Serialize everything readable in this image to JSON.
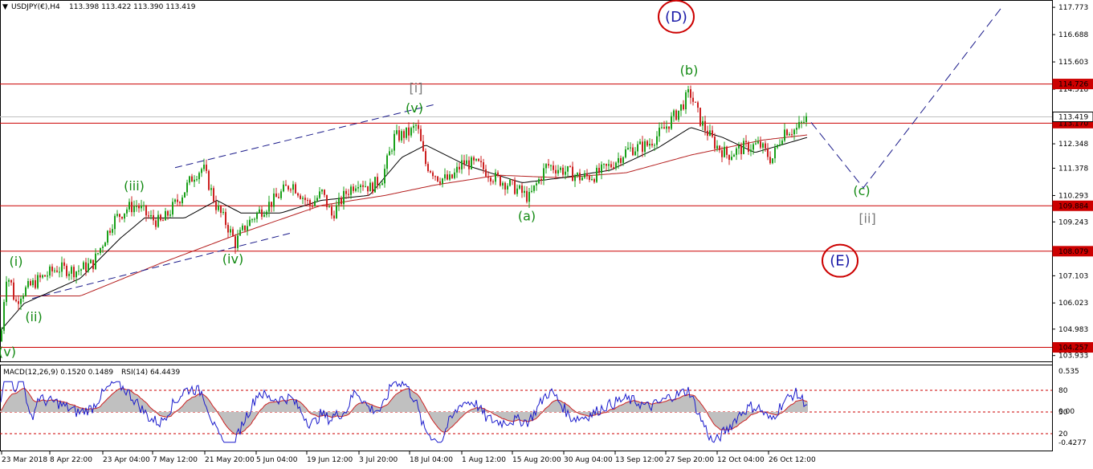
{
  "header": {
    "symbol": "USDJPY(€),H4",
    "ohlc": "113.398 113.422 113.390 113.419"
  },
  "indicator_header": {
    "macd": "MACD(12,26,9) 0.1520 0.1489",
    "rsi": "RSI(14) 64.4439"
  },
  "colors": {
    "level_line": "#cc0000",
    "wave_green": "#138a13",
    "wave_gray": "#7a7a7a",
    "circle_red": "#cc0000",
    "circle_text": "#1a1aa8",
    "channel": "#1a1a8a",
    "ma_fast": "#000000",
    "ma_slow": "#b52020",
    "candle_up": "#1aa01a",
    "candle_down": "#cc2020",
    "rsi_line": "#1a1acc",
    "macd_hist": "#c0c0c0",
    "signal": "#cc2020"
  },
  "chart_data": {
    "type": "candlestick",
    "series_name": "USDJPY(€),H4",
    "y_range": [
      103.7,
      118.0
    ],
    "price_ticks": [
      "117.773",
      "116.688",
      "115.603",
      "114.518",
      "113.419",
      "112.348",
      "111.378",
      "110.293",
      "109.243",
      "108.158",
      "107.103",
      "106.023",
      "104.983",
      "103.933"
    ],
    "levels": [
      {
        "label": "114.726",
        "value": 114.726
      },
      {
        "label": "113.170",
        "value": 113.17
      },
      {
        "label": "109.884",
        "value": 109.884
      },
      {
        "label": "108.079",
        "value": 108.079
      },
      {
        "label": "104.257",
        "value": 104.257
      }
    ],
    "current_price": {
      "label": "113.419",
      "value": 113.419
    },
    "time_ticks": [
      "23 Mar 2018",
      "8 Apr 22:00",
      "23 Apr 04:00",
      "7 May 12:00",
      "21 May 20:00",
      "5 Jun 04:00",
      "19 Jun 12:00",
      "3 Jul 20:00",
      "18 Jul 04:00",
      "1 Aug 12:00",
      "15 Aug 20:00",
      "30 Aug 04:00",
      "13 Sep 12:00",
      "27 Sep 20:00",
      "12 Oct 04:00",
      "26 Oct 12:00"
    ],
    "price_path": [
      {
        "t": 0,
        "p": 104.5
      },
      {
        "t": 4,
        "p": 106.2
      },
      {
        "t": 7,
        "p": 107.1
      },
      {
        "t": 12,
        "p": 106.9
      },
      {
        "t": 18,
        "p": 106.0
      },
      {
        "t": 25,
        "p": 106.4
      },
      {
        "t": 45,
        "p": 106.9
      },
      {
        "t": 70,
        "p": 107.4
      },
      {
        "t": 95,
        "p": 107.3
      },
      {
        "t": 115,
        "p": 107.6
      },
      {
        "t": 140,
        "p": 109.3
      },
      {
        "t": 158,
        "p": 109.8
      },
      {
        "t": 170,
        "p": 109.9
      },
      {
        "t": 185,
        "p": 109.4
      },
      {
        "t": 200,
        "p": 109.2
      },
      {
        "t": 225,
        "p": 110.3
      },
      {
        "t": 240,
        "p": 111.1
      },
      {
        "t": 252,
        "p": 111.4
      },
      {
        "t": 268,
        "p": 109.9
      },
      {
        "t": 282,
        "p": 109.1
      },
      {
        "t": 292,
        "p": 108.4
      },
      {
        "t": 305,
        "p": 109.1
      },
      {
        "t": 320,
        "p": 109.6
      },
      {
        "t": 340,
        "p": 110.1
      },
      {
        "t": 362,
        "p": 110.8
      },
      {
        "t": 385,
        "p": 109.9
      },
      {
        "t": 400,
        "p": 110.4
      },
      {
        "t": 412,
        "p": 109.5
      },
      {
        "t": 430,
        "p": 110.4
      },
      {
        "t": 445,
        "p": 110.9
      },
      {
        "t": 460,
        "p": 110.6
      },
      {
        "t": 475,
        "p": 111.0
      },
      {
        "t": 490,
        "p": 112.6
      },
      {
        "t": 510,
        "p": 112.8
      },
      {
        "t": 518,
        "p": 113.1
      },
      {
        "t": 528,
        "p": 111.6
      },
      {
        "t": 545,
        "p": 111.0
      },
      {
        "t": 560,
        "p": 110.9
      },
      {
        "t": 575,
        "p": 111.6
      },
      {
        "t": 595,
        "p": 111.5
      },
      {
        "t": 615,
        "p": 111.0
      },
      {
        "t": 635,
        "p": 110.7
      },
      {
        "t": 658,
        "p": 110.2
      },
      {
        "t": 680,
        "p": 111.5
      },
      {
        "t": 700,
        "p": 111.3
      },
      {
        "t": 722,
        "p": 111.0
      },
      {
        "t": 740,
        "p": 111.1
      },
      {
        "t": 760,
        "p": 111.5
      },
      {
        "t": 780,
        "p": 112.1
      },
      {
        "t": 805,
        "p": 112.3
      },
      {
        "t": 825,
        "p": 112.9
      },
      {
        "t": 845,
        "p": 113.7
      },
      {
        "t": 858,
        "p": 114.4
      },
      {
        "t": 872,
        "p": 113.2
      },
      {
        "t": 890,
        "p": 112.3
      },
      {
        "t": 905,
        "p": 111.9
      },
      {
        "t": 925,
        "p": 112.2
      },
      {
        "t": 945,
        "p": 112.3
      },
      {
        "t": 960,
        "p": 111.7
      },
      {
        "t": 975,
        "p": 112.9
      },
      {
        "t": 990,
        "p": 112.9
      },
      {
        "t": 1005,
        "p": 113.4
      }
    ],
    "ma_fast_path": [
      {
        "t": 0,
        "p": 104.9
      },
      {
        "t": 30,
        "p": 106.0
      },
      {
        "t": 100,
        "p": 107.0
      },
      {
        "t": 150,
        "p": 108.6
      },
      {
        "t": 180,
        "p": 109.4
      },
      {
        "t": 230,
        "p": 109.4
      },
      {
        "t": 270,
        "p": 110.1
      },
      {
        "t": 300,
        "p": 109.6
      },
      {
        "t": 350,
        "p": 109.6
      },
      {
        "t": 400,
        "p": 110.1
      },
      {
        "t": 460,
        "p": 110.3
      },
      {
        "t": 500,
        "p": 111.8
      },
      {
        "t": 530,
        "p": 112.3
      },
      {
        "t": 580,
        "p": 111.5
      },
      {
        "t": 650,
        "p": 110.8
      },
      {
        "t": 700,
        "p": 111.0
      },
      {
        "t": 760,
        "p": 111.3
      },
      {
        "t": 820,
        "p": 112.2
      },
      {
        "t": 860,
        "p": 113.0
      },
      {
        "t": 900,
        "p": 112.6
      },
      {
        "t": 940,
        "p": 112.0
      },
      {
        "t": 1005,
        "p": 112.6
      }
    ],
    "ma_slow_path": [
      {
        "t": 0,
        "p": 106.3
      },
      {
        "t": 100,
        "p": 106.3
      },
      {
        "t": 200,
        "p": 107.6
      },
      {
        "t": 300,
        "p": 108.8
      },
      {
        "t": 400,
        "p": 109.9
      },
      {
        "t": 480,
        "p": 110.3
      },
      {
        "t": 540,
        "p": 110.7
      },
      {
        "t": 620,
        "p": 111.1
      },
      {
        "t": 700,
        "p": 111.0
      },
      {
        "t": 780,
        "p": 111.2
      },
      {
        "t": 860,
        "p": 111.9
      },
      {
        "t": 950,
        "p": 112.5
      },
      {
        "t": 1005,
        "p": 112.7
      }
    ],
    "channel_lines": [
      {
        "from": {
          "t": 218,
          "p": 111.4
        },
        "to": {
          "t": 540,
          "p": 113.9
        }
      },
      {
        "from": {
          "t": 40,
          "p": 106.2
        },
        "to": {
          "t": 362,
          "p": 108.8
        }
      }
    ],
    "projection": [
      {
        "t": 1010,
        "p": 113.2
      },
      {
        "t": 1075,
        "p": 110.6
      },
      {
        "t": 1248,
        "p": 117.8
      }
    ],
    "wave_labels": [
      {
        "text": "(i)",
        "t": 20,
        "p": 107.5,
        "color": "green"
      },
      {
        "text": "(ii)",
        "t": 42,
        "p": 105.3,
        "color": "green"
      },
      {
        "text": "(iii)",
        "t": 167,
        "p": 110.5,
        "color": "green"
      },
      {
        "text": "(iv)",
        "t": 290,
        "p": 107.6,
        "color": "green"
      },
      {
        "text": "(v)",
        "t": 516,
        "p": 113.6,
        "color": "green"
      },
      {
        "text": "[i]",
        "t": 518,
        "p": 114.4,
        "color": "gray"
      },
      {
        "text": "(a)",
        "t": 656,
        "p": 109.3,
        "color": "green"
      },
      {
        "text": "(b)",
        "t": 858,
        "p": 115.1,
        "color": "green"
      },
      {
        "text": "(c)",
        "t": 1073,
        "p": 110.3,
        "color": "green"
      },
      {
        "text": "[ii]",
        "t": 1080,
        "p": 109.2,
        "color": "gray"
      },
      {
        "text": "(v)",
        "t": 9,
        "p": 103.9,
        "color": "green"
      }
    ],
    "circled_labels": [
      {
        "text": "(D)",
        "t": 842,
        "p": 117.4
      },
      {
        "text": "(E)",
        "t": 1046,
        "p": 107.7
      }
    ],
    "indicator": {
      "macd_ticks": [
        "0.535",
        "0.00",
        "-0.4277"
      ],
      "rsi_ticks": [
        "80",
        "50",
        "20"
      ],
      "rsi_levels": [
        80,
        50,
        20
      ],
      "y_range": [
        0,
        100
      ]
    }
  }
}
